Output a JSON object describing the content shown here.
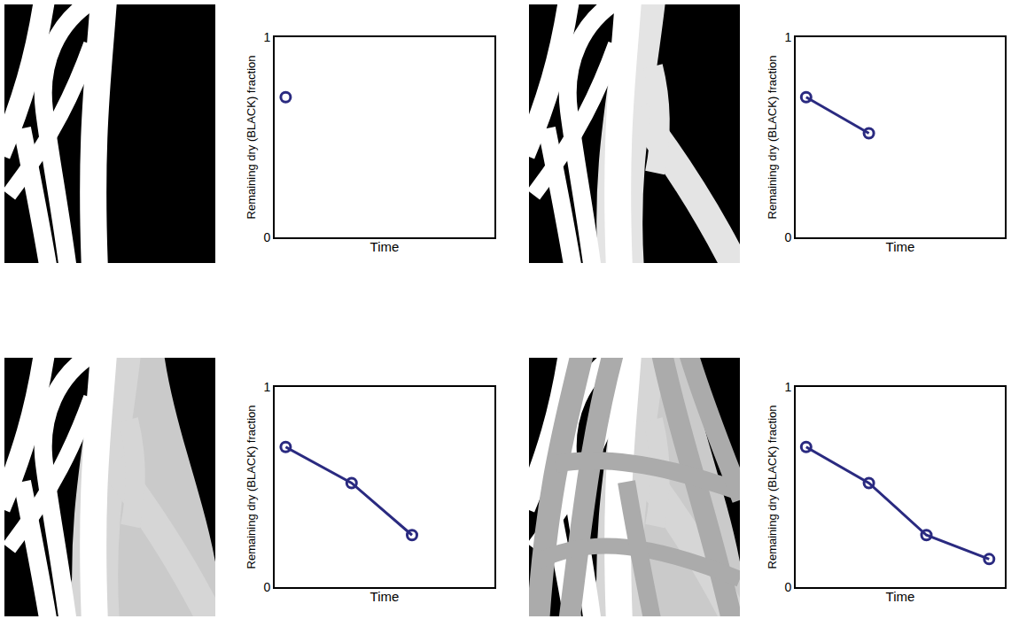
{
  "chart_data": [
    {
      "type": "line",
      "x": [
        0.2
      ],
      "values": [
        0.7
      ],
      "xlim": [
        0,
        4
      ],
      "ylim": [
        0,
        1
      ],
      "yticks": [
        0,
        1
      ],
      "x_label": "Time",
      "y_label": "Remaining dry (BLACK) fraction",
      "tick_labels": "y",
      "color": "#2a2a80",
      "marker": "circle-open",
      "line_style": "solid",
      "grid": false
    },
    {
      "type": "line",
      "x": [
        0.2,
        1.4
      ],
      "values": [
        0.7,
        0.52
      ],
      "xlim": [
        0,
        4
      ],
      "ylim": [
        0,
        1
      ],
      "yticks": [
        0,
        1
      ],
      "x_label": "Time",
      "y_label": "Remaining dry (BLACK) fraction",
      "tick_labels": "y",
      "color": "#2a2a80",
      "marker": "circle-open",
      "line_style": "solid",
      "grid": false
    },
    {
      "type": "line",
      "x": [
        0.2,
        1.4,
        2.5
      ],
      "values": [
        0.7,
        0.52,
        0.26
      ],
      "xlim": [
        0,
        4
      ],
      "ylim": [
        0,
        1
      ],
      "yticks": [
        0,
        1
      ],
      "x_label": "Time",
      "y_label": "Remaining dry (BLACK) fraction",
      "tick_labels": "y",
      "color": "#2a2a80",
      "marker": "circle-open",
      "line_style": "solid",
      "grid": false
    },
    {
      "type": "line",
      "x": [
        0.2,
        1.4,
        2.5,
        3.7
      ],
      "values": [
        0.7,
        0.52,
        0.26,
        0.14
      ],
      "xlim": [
        0,
        4
      ],
      "ylim": [
        0,
        1
      ],
      "yticks": [
        0,
        1
      ],
      "x_label": "Time",
      "y_label": "Remaining dry (BLACK) fraction",
      "tick_labels": "y",
      "color": "#2a2a80",
      "marker": "circle-open",
      "line_style": "solid",
      "grid": false
    }
  ]
}
